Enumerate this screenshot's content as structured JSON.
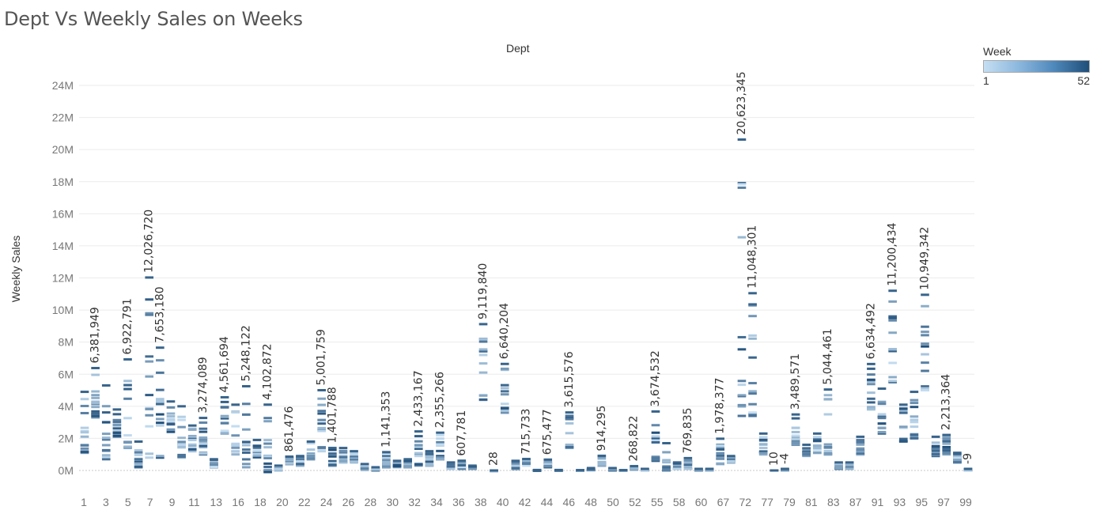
{
  "title": "Dept Vs Weekly Sales on Weeks",
  "colors": {
    "low": "#c5def2",
    "high": "#1f4e79",
    "grid": "#ebebeb",
    "zero": "#c8c8c8"
  },
  "legend": {
    "title": "Week",
    "min": "1",
    "max": "52"
  },
  "chart_data": {
    "type": "strip",
    "title": "Dept Vs Weekly Sales on Weeks",
    "xlabel": "Dept",
    "ylabel": "Weekly Sales",
    "ylim": [
      -1500000,
      25000000
    ],
    "yticks": [
      0,
      2000000,
      4000000,
      6000000,
      8000000,
      10000000,
      12000000,
      14000000,
      16000000,
      18000000,
      20000000,
      22000000,
      24000000
    ],
    "ytick_labels": [
      "0M",
      "2M",
      "4M",
      "6M",
      "8M",
      "10M",
      "12M",
      "14M",
      "16M",
      "18M",
      "20M",
      "22M",
      "24M"
    ],
    "color_by": "Week",
    "color_range": [
      1,
      52
    ],
    "x_tick_labels": [
      "1",
      "3",
      "5",
      "7",
      "9",
      "11",
      "13",
      "16",
      "18",
      "20",
      "22",
      "24",
      "26",
      "28",
      "30",
      "32",
      "34",
      "36",
      "38",
      "40",
      "42",
      "44",
      "46",
      "48",
      "50",
      "52",
      "55",
      "58",
      "60",
      "67",
      "72",
      "77",
      "79",
      "81",
      "83",
      "87",
      "91",
      "93",
      "95",
      "97",
      "99"
    ],
    "depts": [
      {
        "dept": "1",
        "min": 1100000,
        "max": 4900000,
        "label": ""
      },
      {
        "dept": "2",
        "min": 3300000,
        "max": 6381949,
        "label": "6,381,949"
      },
      {
        "dept": "3",
        "min": 700000,
        "max": 5300000,
        "label": ""
      },
      {
        "dept": "4",
        "min": 2100000,
        "max": 3800000,
        "label": ""
      },
      {
        "dept": "5",
        "min": 1400000,
        "max": 6922791,
        "label": "6,922,791"
      },
      {
        "dept": "6",
        "min": 200000,
        "max": 1800000,
        "label": ""
      },
      {
        "dept": "7",
        "min": 800000,
        "max": 12026720,
        "label": "12,026,720"
      },
      {
        "dept": "7b",
        "min": 800000,
        "max": 7653180,
        "label": "7,653,180"
      },
      {
        "dept": "8",
        "min": 2400000,
        "max": 4300000,
        "label": ""
      },
      {
        "dept": "9",
        "min": 800000,
        "max": 4000000,
        "label": ""
      },
      {
        "dept": "10",
        "min": 1200000,
        "max": 2800000,
        "label": ""
      },
      {
        "dept": "11",
        "min": 1000000,
        "max": 3274089,
        "label": "3,274,089"
      },
      {
        "dept": "12",
        "min": 200000,
        "max": 700000,
        "label": ""
      },
      {
        "dept": "13",
        "min": 2300000,
        "max": 4561694,
        "label": "4,561,694"
      },
      {
        "dept": "14",
        "min": 1000000,
        "max": 4100000,
        "label": ""
      },
      {
        "dept": "16",
        "min": 200000,
        "max": 5248122,
        "label": "5,248,122"
      },
      {
        "dept": "17",
        "min": 800000,
        "max": 1900000,
        "label": ""
      },
      {
        "dept": "18",
        "min": -100000,
        "max": 4102872,
        "label": "4,102,872"
      },
      {
        "dept": "19",
        "min": 0,
        "max": 300000,
        "label": ""
      },
      {
        "dept": "20",
        "min": 400000,
        "max": 861476,
        "label": "861,476"
      },
      {
        "dept": "21",
        "min": 300000,
        "max": 900000,
        "label": ""
      },
      {
        "dept": "22",
        "min": 700000,
        "max": 1800000,
        "label": ""
      },
      {
        "dept": "23",
        "min": 1200000,
        "max": 5001759,
        "label": "5,001,759"
      },
      {
        "dept": "24",
        "min": 300000,
        "max": 1401788,
        "label": "1,401,788"
      },
      {
        "dept": "25",
        "min": 500000,
        "max": 1400000,
        "label": ""
      },
      {
        "dept": "26",
        "min": 500000,
        "max": 1200000,
        "label": ""
      },
      {
        "dept": "27",
        "min": 50000,
        "max": 400000,
        "label": ""
      },
      {
        "dept": "28",
        "min": 0,
        "max": 200000,
        "label": ""
      },
      {
        "dept": "29",
        "min": 200000,
        "max": 1141353,
        "label": "1,141,353"
      },
      {
        "dept": "30",
        "min": 200000,
        "max": 600000,
        "label": ""
      },
      {
        "dept": "31",
        "min": 200000,
        "max": 700000,
        "label": ""
      },
      {
        "dept": "32",
        "min": 300000,
        "max": 2433167,
        "label": "2,433,167"
      },
      {
        "dept": "33",
        "min": 300000,
        "max": 1200000,
        "label": ""
      },
      {
        "dept": "34",
        "min": 700000,
        "max": 2355266,
        "label": "2,355,266"
      },
      {
        "dept": "35",
        "min": 100000,
        "max": 500000,
        "label": ""
      },
      {
        "dept": "36",
        "min": 100000,
        "max": 607781,
        "label": "607,781"
      },
      {
        "dept": "37",
        "min": 100000,
        "max": 300000,
        "label": ""
      },
      {
        "dept": "38",
        "min": 4400000,
        "max": 9119840,
        "label": "9,119,840"
      },
      {
        "dept": "39",
        "min": -30000,
        "max": 28,
        "label": "28"
      },
      {
        "dept": "40",
        "min": 3600000,
        "max": 6640204,
        "label": "6,640,204"
      },
      {
        "dept": "41",
        "min": 100000,
        "max": 600000,
        "label": ""
      },
      {
        "dept": "42",
        "min": 300000,
        "max": 715733,
        "label": "715,733"
      },
      {
        "dept": "43",
        "min": -20000,
        "max": 30000,
        "label": ""
      },
      {
        "dept": "44",
        "min": 200000,
        "max": 675477,
        "label": "675,477"
      },
      {
        "dept": "45",
        "min": -20000,
        "max": 30000,
        "label": ""
      },
      {
        "dept": "46",
        "min": 1400000,
        "max": 3615576,
        "label": "3,615,576"
      },
      {
        "dept": "47",
        "min": -20000,
        "max": 20000,
        "label": ""
      },
      {
        "dept": "48",
        "min": 0,
        "max": 150000,
        "label": ""
      },
      {
        "dept": "49",
        "min": 300000,
        "max": 914295,
        "label": "914,295"
      },
      {
        "dept": "50",
        "min": 0,
        "max": 150000,
        "label": ""
      },
      {
        "dept": "51",
        "min": -10000,
        "max": 20000,
        "label": ""
      },
      {
        "dept": "52",
        "min": 50000,
        "max": 268822,
        "label": "268,822"
      },
      {
        "dept": "54",
        "min": 0,
        "max": 100000,
        "label": ""
      },
      {
        "dept": "55",
        "min": 600000,
        "max": 3674532,
        "label": "3,674,532"
      },
      {
        "dept": "56",
        "min": 0,
        "max": 1700000,
        "label": ""
      },
      {
        "dept": "58",
        "min": 100000,
        "max": 500000,
        "label": ""
      },
      {
        "dept": "59",
        "min": 100000,
        "max": 769835,
        "label": "769,835"
      },
      {
        "dept": "60",
        "min": 0,
        "max": 100000,
        "label": ""
      },
      {
        "dept": "65",
        "min": 0,
        "max": 100000,
        "label": ""
      },
      {
        "dept": "67",
        "min": 400000,
        "max": 1978377,
        "label": "1,978,377"
      },
      {
        "dept": "71",
        "min": 500000,
        "max": 900000,
        "label": ""
      },
      {
        "dept": "72",
        "min": 3400000,
        "max": 20623345,
        "label": "20,623,345"
      },
      {
        "dept": "72b",
        "min": 3400000,
        "max": 11048301,
        "label": "11,048,301"
      },
      {
        "dept": "74",
        "min": 1000000,
        "max": 2300000,
        "label": ""
      },
      {
        "dept": "77",
        "min": 0,
        "max": 10,
        "label": "10"
      },
      {
        "dept": "78",
        "min": -4,
        "max": 100000,
        "label": "-4"
      },
      {
        "dept": "79",
        "min": 1600000,
        "max": 3489571,
        "label": "3,489,571"
      },
      {
        "dept": "80",
        "min": 900000,
        "max": 1600000,
        "label": ""
      },
      {
        "dept": "81",
        "min": 1100000,
        "max": 2300000,
        "label": ""
      },
      {
        "dept": "82",
        "min": 1000000,
        "max": 5044461,
        "label": "5,044,461"
      },
      {
        "dept": "83",
        "min": 100000,
        "max": 500000,
        "label": ""
      },
      {
        "dept": "85",
        "min": 100000,
        "max": 500000,
        "label": ""
      },
      {
        "dept": "87",
        "min": 1000000,
        "max": 2100000,
        "label": ""
      },
      {
        "dept": "90",
        "min": 3800000,
        "max": 6634492,
        "label": "6,634,492"
      },
      {
        "dept": "91",
        "min": 2300000,
        "max": 5100000,
        "label": ""
      },
      {
        "dept": "92",
        "min": 5500000,
        "max": 11200434,
        "label": "11,200,434"
      },
      {
        "dept": "93",
        "min": 1800000,
        "max": 4100000,
        "label": ""
      },
      {
        "dept": "94",
        "min": 2000000,
        "max": 4900000,
        "label": ""
      },
      {
        "dept": "95",
        "min": 5000000,
        "max": 10949342,
        "label": "10,949,342"
      },
      {
        "dept": "96",
        "min": 900000,
        "max": 2100000,
        "label": ""
      },
      {
        "dept": "97",
        "min": 1000000,
        "max": 2213364,
        "label": "2,213,364"
      },
      {
        "dept": "98",
        "min": 500000,
        "max": 1100000,
        "label": ""
      },
      {
        "dept": "99",
        "min": -9,
        "max": 100000,
        "label": "-9"
      }
    ]
  }
}
